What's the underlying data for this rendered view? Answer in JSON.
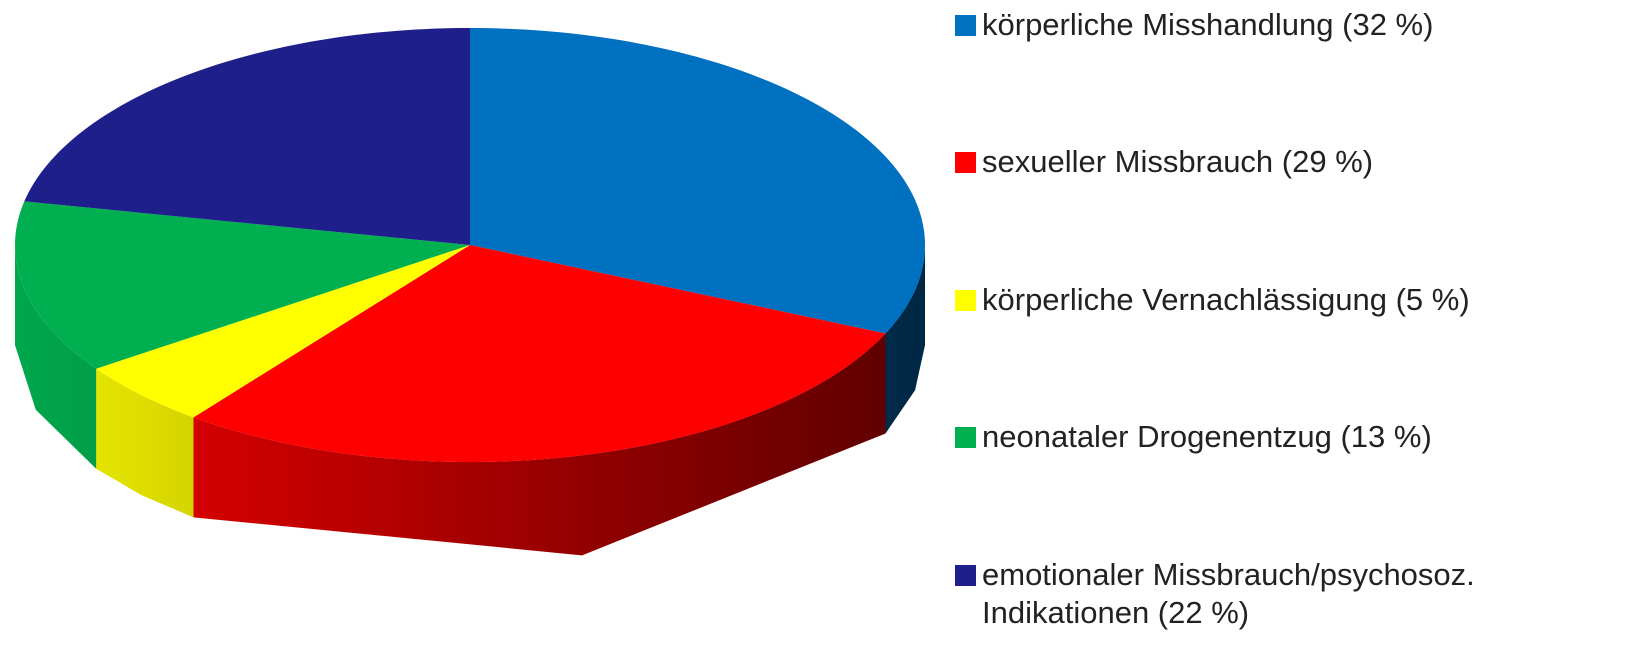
{
  "chart_data": {
    "type": "pie",
    "categories": [
      "körperliche Misshandlung (32 %)",
      "sexueller Missbrauch (29 %)",
      "körperliche Vernachlässigung (5 %)",
      "neonataler Drogenentzug (13 %)",
      "emotionaler Missbrauch/psychosoz. Indikationen (22 %)"
    ],
    "values": [
      32,
      29,
      5,
      13,
      22
    ],
    "colors": [
      "#0070c0",
      "#ff0000",
      "#ffff00",
      "#00b050",
      "#1f1f8c"
    ],
    "legend": "right"
  }
}
